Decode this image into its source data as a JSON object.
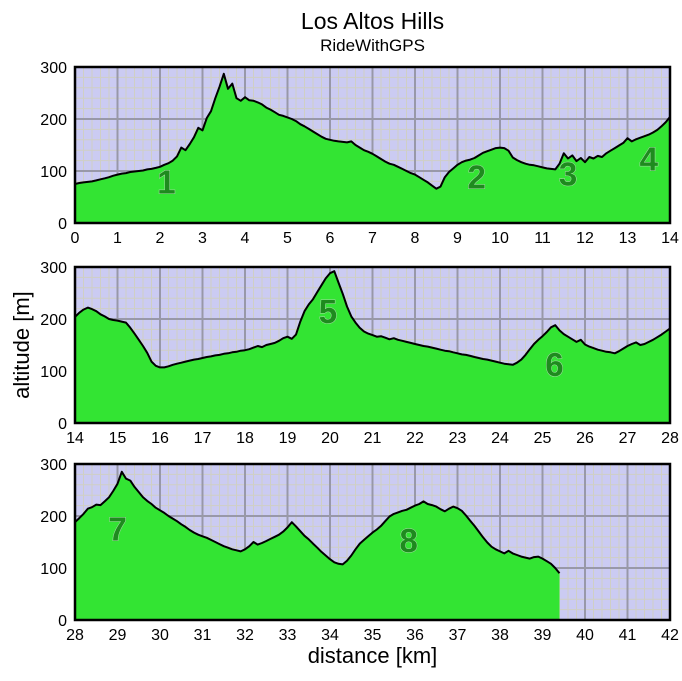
{
  "title": "Los Altos Hills",
  "subtitle": "RideWithGPS",
  "xlabel": "distance [km]",
  "ylabel": "altitude [m]",
  "colors": {
    "plot_bg": "#cbcbf2",
    "grid_minor": "#cfcfc4",
    "grid_major": "#9898a8",
    "fill_green": "#33e433",
    "profile_line": "#000000",
    "frame": "#000000",
    "climb_label": "#1e8b1e",
    "climb_label_halo": "#a8dca8",
    "text": "#000000"
  },
  "chart_data": {
    "type": "area",
    "title": "Los Altos Hills",
    "subtitle": "RideWithGPS",
    "xlabel": "distance [km]",
    "ylabel": "altitude [m]",
    "ylim": [
      0,
      300
    ],
    "yticks": [
      0,
      100,
      200,
      300
    ],
    "grid": "major+minor",
    "minor_x_km": 0.2,
    "minor_y_m": 20,
    "legend": "none",
    "panels": [
      {
        "x_start": 0,
        "x_end": 14,
        "sample_step_km": 0.1,
        "xticks": [
          0,
          1,
          2,
          3,
          4,
          5,
          6,
          7,
          8,
          9,
          10,
          11,
          12,
          13,
          14
        ],
        "altitudes_m": [
          75,
          77,
          78,
          79,
          80,
          82,
          84,
          86,
          88,
          91,
          93,
          95,
          96,
          98,
          99,
          100,
          101,
          103,
          104,
          106,
          108,
          112,
          115,
          120,
          128,
          145,
          140,
          152,
          165,
          183,
          178,
          202,
          215,
          240,
          262,
          287,
          258,
          268,
          240,
          235,
          242,
          236,
          235,
          232,
          228,
          222,
          218,
          213,
          208,
          206,
          203,
          200,
          196,
          190,
          186,
          181,
          176,
          171,
          166,
          162,
          160,
          158,
          157,
          156,
          155,
          157,
          150,
          145,
          140,
          137,
          133,
          128,
          123,
          118,
          114,
          112,
          108,
          104,
          100,
          96,
          93,
          88,
          83,
          78,
          72,
          66,
          70,
          88,
          98,
          105,
          112,
          117,
          120,
          122,
          125,
          130,
          135,
          138,
          141,
          144,
          145,
          144,
          139,
          126,
          121,
          117,
          114,
          112,
          111,
          109,
          107,
          105,
          104,
          103,
          114,
          134,
          124,
          130,
          119,
          125,
          117,
          127,
          124,
          129,
          127,
          134,
          139,
          144,
          149,
          154,
          163,
          157,
          161,
          164,
          167,
          170,
          174,
          179,
          186,
          194,
          204
        ],
        "climbs": [
          {
            "label": "1",
            "x_km": 2.15,
            "y_m": 80
          },
          {
            "label": "2",
            "x_km": 9.45,
            "y_m": 89
          },
          {
            "label": "3",
            "x_km": 11.6,
            "y_m": 95
          },
          {
            "label": "4",
            "x_km": 13.5,
            "y_m": 124
          }
        ]
      },
      {
        "x_start": 14,
        "x_end": 28,
        "sample_step_km": 0.1,
        "xticks": [
          14,
          15,
          16,
          17,
          18,
          19,
          20,
          21,
          22,
          23,
          24,
          25,
          26,
          27,
          28
        ],
        "altitudes_m": [
          204,
          212,
          218,
          222,
          219,
          215,
          209,
          205,
          200,
          198,
          197,
          195,
          193,
          183,
          172,
          160,
          148,
          135,
          118,
          110,
          107,
          107,
          109,
          112,
          114,
          116,
          118,
          120,
          122,
          123,
          125,
          127,
          128,
          130,
          131,
          133,
          134,
          136,
          137,
          139,
          140,
          142,
          145,
          148,
          146,
          150,
          152,
          154,
          158,
          163,
          166,
          162,
          170,
          195,
          215,
          228,
          238,
          252,
          265,
          278,
          288,
          292,
          270,
          248,
          224,
          205,
          193,
          183,
          176,
          172,
          169,
          166,
          167,
          164,
          161,
          163,
          160,
          158,
          156,
          154,
          152,
          150,
          148,
          147,
          145,
          143,
          141,
          139,
          138,
          136,
          134,
          132,
          131,
          129,
          127,
          125,
          123,
          122,
          120,
          118,
          116,
          114,
          113,
          112,
          116,
          122,
          131,
          142,
          152,
          160,
          167,
          175,
          184,
          188,
          178,
          171,
          166,
          161,
          156,
          160,
          151,
          147,
          144,
          141,
          139,
          137,
          136,
          134,
          138,
          143,
          148,
          152,
          155,
          150,
          152,
          156,
          160,
          165,
          170,
          176,
          182
        ],
        "climbs": [
          {
            "label": "5",
            "x_km": 19.95,
            "y_m": 215
          },
          {
            "label": "6",
            "x_km": 25.28,
            "y_m": 113
          }
        ]
      },
      {
        "x_start": 28,
        "x_end": 42,
        "sample_step_km": 0.1,
        "xticks": [
          28,
          29,
          30,
          31,
          32,
          33,
          34,
          35,
          36,
          37,
          38,
          39,
          40,
          41,
          42
        ],
        "altitudes_m": [
          188,
          196,
          204,
          214,
          217,
          222,
          221,
          228,
          236,
          248,
          262,
          285,
          272,
          268,
          256,
          246,
          236,
          229,
          223,
          216,
          211,
          206,
          200,
          195,
          190,
          184,
          179,
          173,
          168,
          164,
          161,
          158,
          154,
          150,
          146,
          142,
          139,
          136,
          134,
          132,
          136,
          142,
          150,
          145,
          148,
          152,
          156,
          160,
          164,
          170,
          178,
          188,
          180,
          171,
          162,
          155,
          147,
          139,
          131,
          124,
          117,
          111,
          108,
          107,
          114,
          124,
          136,
          147,
          154,
          161,
          168,
          174,
          181,
          190,
          199,
          204,
          207,
          210,
          212,
          216,
          220,
          223,
          228,
          223,
          221,
          218,
          213,
          209,
          214,
          218,
          215,
          210,
          201,
          191,
          181,
          170,
          159,
          149,
          141,
          136,
          132,
          128,
          133,
          128,
          125,
          122,
          120,
          118,
          121,
          122,
          118,
          113,
          108,
          100,
          90
        ],
        "climbs": [
          {
            "label": "7",
            "x_km": 29.0,
            "y_m": 176
          },
          {
            "label": "8",
            "x_km": 35.85,
            "y_m": 154
          }
        ]
      }
    ]
  }
}
